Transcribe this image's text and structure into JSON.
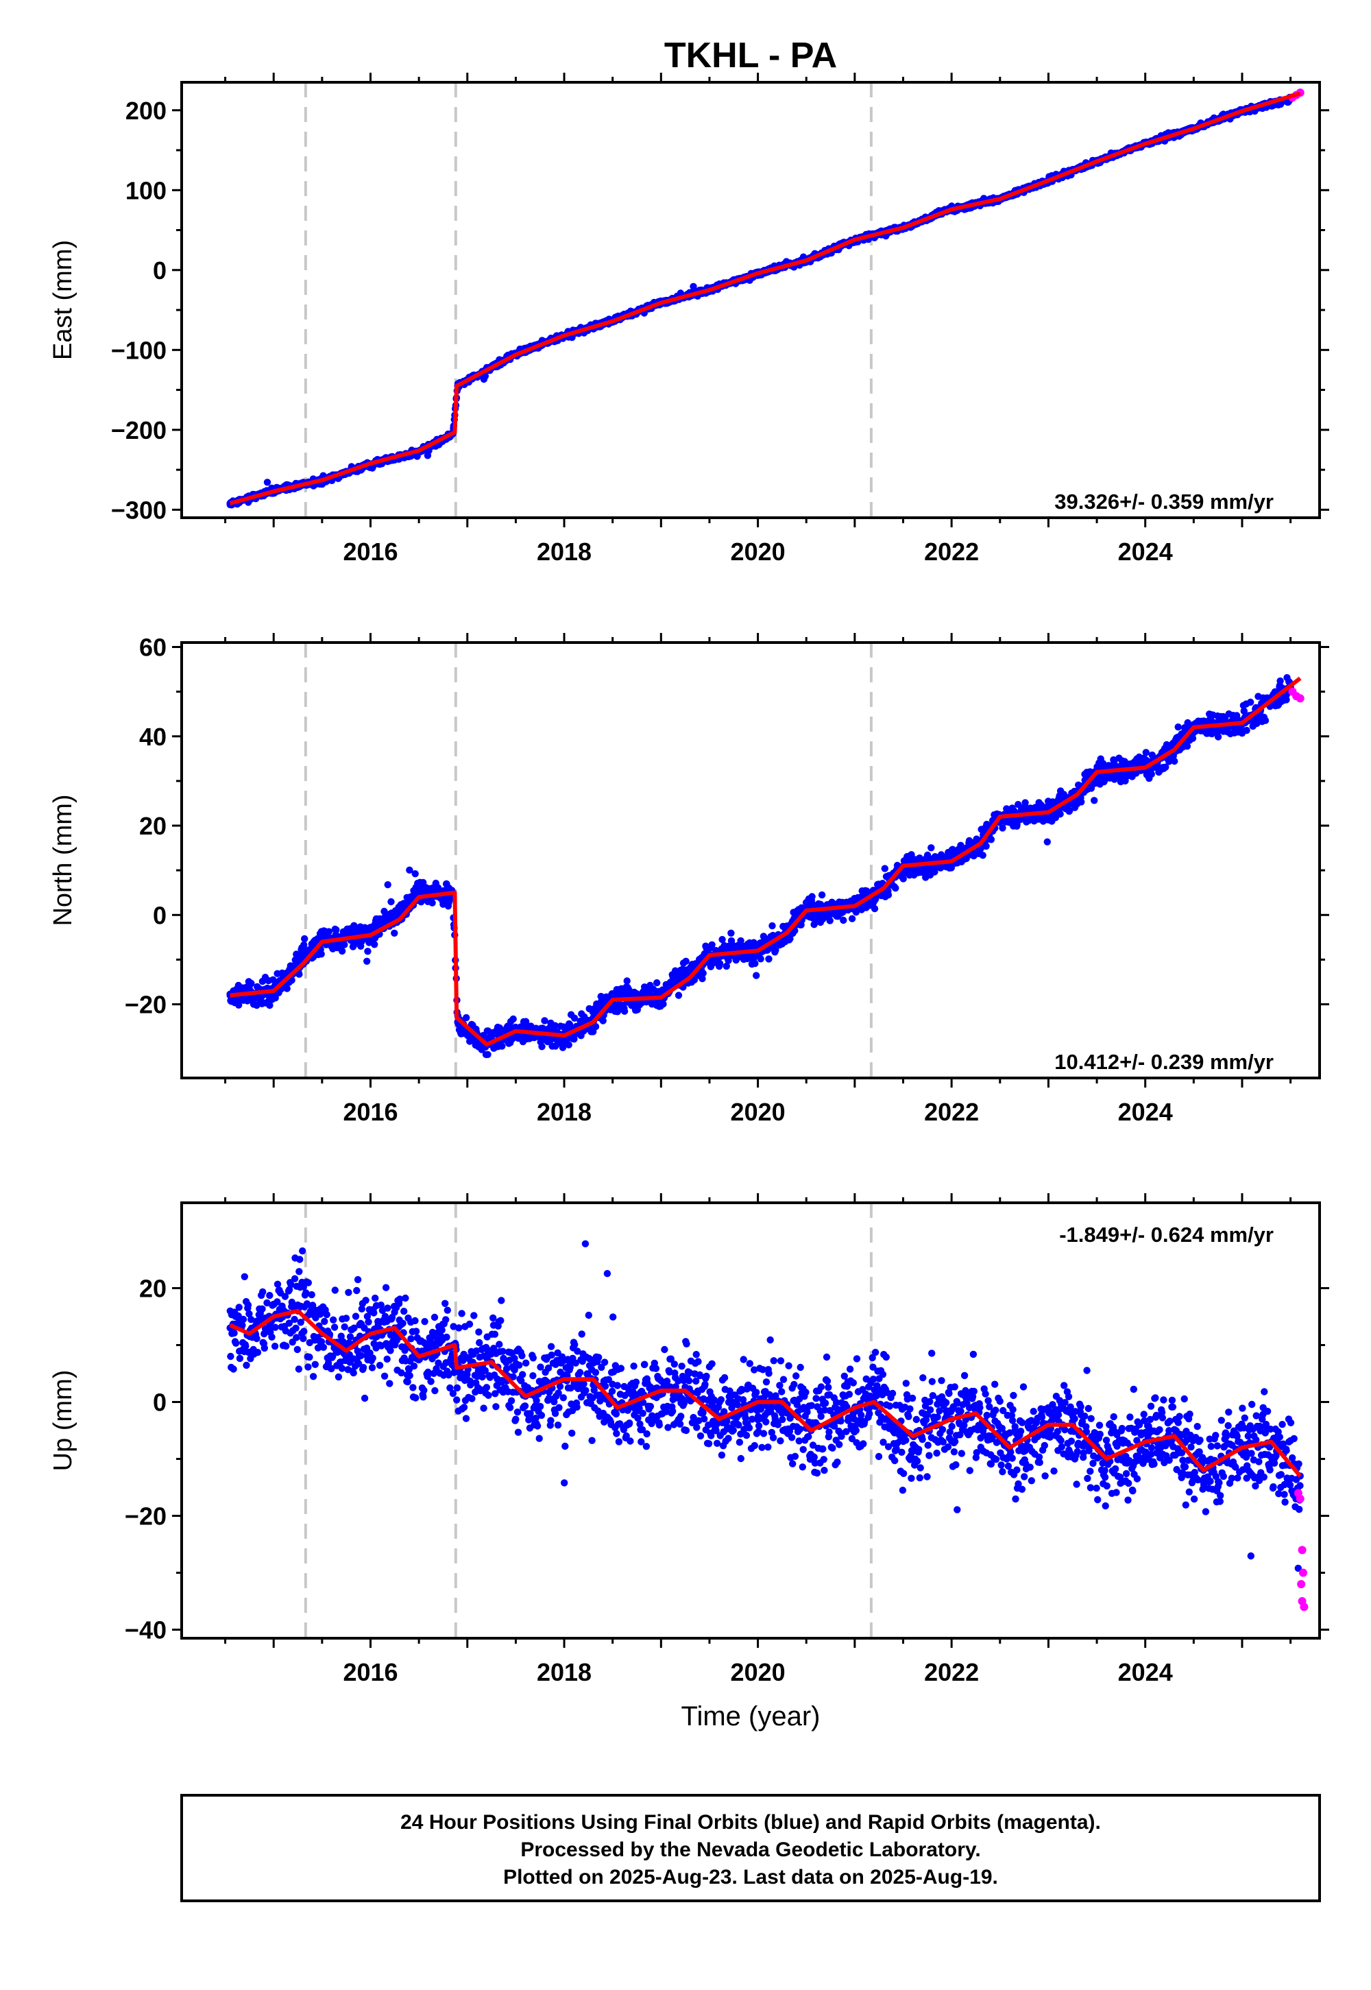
{
  "title": "TKHL - PA",
  "xlabel": "Time (year)",
  "caption": {
    "line1": "24 Hour Positions Using Final Orbits (blue) and Rapid Orbits (magenta).",
    "line2": "Processed by the Nevada Geodetic Laboratory.",
    "line3": "Plotted on 2025-Aug-23. Last data on 2025-Aug-19."
  },
  "colors": {
    "final_orbits": "#0000ff",
    "rapid_orbits": "#ff00ff",
    "model": "#ff0000",
    "event_lines": "#c8c8c8",
    "frame": "#000000"
  },
  "chart_data": [
    {
      "type": "scatter",
      "ylabel": "East (mm)",
      "rate_label": "39.326+/- 0.359 mm/yr",
      "xlim": [
        2014.05,
        2025.8
      ],
      "ylim": [
        -310,
        235
      ],
      "xticks": [
        2016,
        2018,
        2020,
        2022,
        2024
      ],
      "yticks": [
        -300,
        -200,
        -100,
        0,
        100,
        200
      ],
      "ytick_labels": [
        "−300",
        "−200",
        "−100",
        "0",
        "100",
        "200"
      ],
      "event_lines": [
        2015.33,
        2016.88,
        2021.17
      ],
      "final_orbits": [
        [
          2014.55,
          -292
        ],
        [
          2015.0,
          -276
        ],
        [
          2015.5,
          -264
        ],
        [
          2016.0,
          -243
        ],
        [
          2016.5,
          -228
        ],
        [
          2016.85,
          -205
        ],
        [
          2016.9,
          -145
        ],
        [
          2017.5,
          -105
        ],
        [
          2018.0,
          -82
        ],
        [
          2018.5,
          -63
        ],
        [
          2019.0,
          -41
        ],
        [
          2019.5,
          -25
        ],
        [
          2020.0,
          -4
        ],
        [
          2020.5,
          12
        ],
        [
          2021.0,
          38
        ],
        [
          2021.5,
          53
        ],
        [
          2022.0,
          76
        ],
        [
          2022.5,
          89
        ],
        [
          2023.0,
          112
        ],
        [
          2023.5,
          136
        ],
        [
          2024.0,
          158
        ],
        [
          2024.5,
          177
        ],
        [
          2025.0,
          199
        ],
        [
          2025.5,
          214
        ]
      ],
      "rapid_orbits": [
        [
          2025.52,
          216
        ],
        [
          2025.56,
          219
        ],
        [
          2025.6,
          222
        ]
      ],
      "model": [
        [
          2014.55,
          -292
        ],
        [
          2015.0,
          -277
        ],
        [
          2015.5,
          -263
        ],
        [
          2016.0,
          -242
        ],
        [
          2016.5,
          -226
        ],
        [
          2016.87,
          -203
        ],
        [
          2016.89,
          -145
        ],
        [
          2017.5,
          -106
        ],
        [
          2018.0,
          -82
        ],
        [
          2018.5,
          -64
        ],
        [
          2019.0,
          -41
        ],
        [
          2019.5,
          -25
        ],
        [
          2020.0,
          -4
        ],
        [
          2020.5,
          12
        ],
        [
          2021.0,
          38
        ],
        [
          2021.5,
          53
        ],
        [
          2022.0,
          76
        ],
        [
          2022.5,
          89
        ],
        [
          2023.0,
          112
        ],
        [
          2023.5,
          136
        ],
        [
          2024.0,
          158
        ],
        [
          2024.5,
          177
        ],
        [
          2025.0,
          199
        ],
        [
          2025.6,
          221
        ]
      ]
    },
    {
      "type": "scatter",
      "ylabel": "North (mm)",
      "rate_label": "10.412+/- 0.239 mm/yr",
      "xlim": [
        2014.05,
        2025.8
      ],
      "ylim": [
        -36.5,
        61
      ],
      "xticks": [
        2016,
        2018,
        2020,
        2022,
        2024
      ],
      "yticks": [
        -20,
        0,
        20,
        40,
        60
      ],
      "ytick_labels": [
        "−20",
        "0",
        "20",
        "40",
        "60"
      ],
      "event_lines": [
        2015.33,
        2016.88,
        2021.17
      ],
      "final_orbits": [
        [
          2014.55,
          -18
        ],
        [
          2015.0,
          -17
        ],
        [
          2015.3,
          -10
        ],
        [
          2015.5,
          -6
        ],
        [
          2016.0,
          -4
        ],
        [
          2016.3,
          0
        ],
        [
          2016.5,
          5
        ],
        [
          2016.85,
          5
        ],
        [
          2016.9,
          -24
        ],
        [
          2017.2,
          -29
        ],
        [
          2017.5,
          -26
        ],
        [
          2018.0,
          -27
        ],
        [
          2018.3,
          -23
        ],
        [
          2018.5,
          -19
        ],
        [
          2019.0,
          -18
        ],
        [
          2019.3,
          -13
        ],
        [
          2019.5,
          -9
        ],
        [
          2020.0,
          -8
        ],
        [
          2020.3,
          -4
        ],
        [
          2020.5,
          1
        ],
        [
          2021.0,
          2
        ],
        [
          2021.3,
          6
        ],
        [
          2021.5,
          11
        ],
        [
          2022.0,
          12
        ],
        [
          2022.3,
          16
        ],
        [
          2022.5,
          22
        ],
        [
          2023.0,
          23
        ],
        [
          2023.3,
          27
        ],
        [
          2023.5,
          32
        ],
        [
          2024.0,
          33
        ],
        [
          2024.3,
          37
        ],
        [
          2024.5,
          42
        ],
        [
          2025.0,
          43
        ],
        [
          2025.5,
          51
        ]
      ],
      "rapid_orbits": [
        [
          2025.52,
          50
        ],
        [
          2025.56,
          49
        ],
        [
          2025.6,
          48.5
        ]
      ],
      "model": [
        [
          2014.55,
          -18
        ],
        [
          2015.0,
          -17
        ],
        [
          2015.3,
          -11
        ],
        [
          2015.5,
          -6
        ],
        [
          2016.0,
          -4.5
        ],
        [
          2016.3,
          -1
        ],
        [
          2016.5,
          4
        ],
        [
          2016.87,
          5
        ],
        [
          2016.89,
          -23
        ],
        [
          2017.2,
          -29
        ],
        [
          2017.5,
          -26
        ],
        [
          2018.0,
          -27
        ],
        [
          2018.3,
          -24
        ],
        [
          2018.5,
          -19
        ],
        [
          2019.0,
          -18.5
        ],
        [
          2019.3,
          -14
        ],
        [
          2019.5,
          -9
        ],
        [
          2020.0,
          -8
        ],
        [
          2020.3,
          -4
        ],
        [
          2020.5,
          1
        ],
        [
          2021.0,
          2
        ],
        [
          2021.3,
          6
        ],
        [
          2021.5,
          11
        ],
        [
          2022.0,
          12
        ],
        [
          2022.3,
          16
        ],
        [
          2022.5,
          22
        ],
        [
          2023.0,
          23
        ],
        [
          2023.3,
          27
        ],
        [
          2023.5,
          32
        ],
        [
          2024.0,
          33
        ],
        [
          2024.3,
          37
        ],
        [
          2024.5,
          42
        ],
        [
          2025.0,
          43
        ],
        [
          2025.6,
          53
        ]
      ]
    },
    {
      "type": "scatter",
      "ylabel": "Up (mm)",
      "rate_label": "-1.849+/- 0.624 mm/yr",
      "xlim": [
        2014.05,
        2025.8
      ],
      "ylim": [
        -41.5,
        35
      ],
      "xticks": [
        2016,
        2018,
        2020,
        2022,
        2024
      ],
      "yticks": [
        -40,
        -20,
        0,
        20
      ],
      "ytick_labels": [
        "−40",
        "−20",
        "0",
        "20"
      ],
      "event_lines": [
        2015.33,
        2016.88,
        2021.17
      ],
      "final_orbits": [
        [
          2014.55,
          13
        ],
        [
          2014.75,
          12
        ],
        [
          2015.0,
          15
        ],
        [
          2015.25,
          16
        ],
        [
          2015.5,
          12
        ],
        [
          2015.75,
          9
        ],
        [
          2016.0,
          12
        ],
        [
          2016.25,
          13
        ],
        [
          2016.5,
          8
        ],
        [
          2016.85,
          10
        ],
        [
          2016.9,
          6
        ],
        [
          2017.25,
          7
        ],
        [
          2017.6,
          1
        ],
        [
          2018.0,
          4
        ],
        [
          2018.3,
          3
        ],
        [
          2018.55,
          -1
        ],
        [
          2019.0,
          2
        ],
        [
          2019.25,
          2
        ],
        [
          2019.6,
          -3
        ],
        [
          2020.0,
          0
        ],
        [
          2020.25,
          0
        ],
        [
          2020.55,
          -5
        ],
        [
          2021.0,
          -1
        ],
        [
          2021.2,
          0
        ],
        [
          2021.6,
          -6
        ],
        [
          2022.0,
          -3
        ],
        [
          2022.25,
          -2
        ],
        [
          2022.6,
          -8
        ],
        [
          2023.0,
          -4
        ],
        [
          2023.25,
          -4
        ],
        [
          2023.6,
          -10
        ],
        [
          2024.0,
          -7
        ],
        [
          2024.3,
          -6
        ],
        [
          2024.6,
          -12
        ],
        [
          2025.0,
          -8
        ],
        [
          2025.3,
          -7
        ],
        [
          2025.6,
          -13
        ]
      ],
      "rapid_orbits": [
        [
          2025.58,
          -16
        ],
        [
          2025.6,
          -17
        ],
        [
          2025.62,
          -26
        ],
        [
          2025.63,
          -30
        ],
        [
          2025.61,
          -32
        ],
        [
          2025.62,
          -35
        ],
        [
          2025.64,
          -36
        ]
      ],
      "model": [
        [
          2014.55,
          13.5
        ],
        [
          2014.75,
          12
        ],
        [
          2015.0,
          15
        ],
        [
          2015.25,
          16
        ],
        [
          2015.5,
          12
        ],
        [
          2015.75,
          9
        ],
        [
          2016.0,
          12
        ],
        [
          2016.25,
          13
        ],
        [
          2016.5,
          8
        ],
        [
          2016.87,
          10
        ],
        [
          2016.89,
          6
        ],
        [
          2017.25,
          7
        ],
        [
          2017.6,
          1
        ],
        [
          2018.0,
          4
        ],
        [
          2018.3,
          4
        ],
        [
          2018.55,
          -1
        ],
        [
          2019.0,
          2
        ],
        [
          2019.25,
          2
        ],
        [
          2019.6,
          -3
        ],
        [
          2020.0,
          0
        ],
        [
          2020.25,
          0
        ],
        [
          2020.55,
          -5
        ],
        [
          2021.0,
          -1
        ],
        [
          2021.2,
          0
        ],
        [
          2021.6,
          -6
        ],
        [
          2022.0,
          -3
        ],
        [
          2022.25,
          -2
        ],
        [
          2022.6,
          -8
        ],
        [
          2023.0,
          -4
        ],
        [
          2023.25,
          -4
        ],
        [
          2023.6,
          -10
        ],
        [
          2024.0,
          -7
        ],
        [
          2024.3,
          -6
        ],
        [
          2024.6,
          -12
        ],
        [
          2025.0,
          -8
        ],
        [
          2025.3,
          -7
        ],
        [
          2025.6,
          -13
        ]
      ]
    }
  ]
}
